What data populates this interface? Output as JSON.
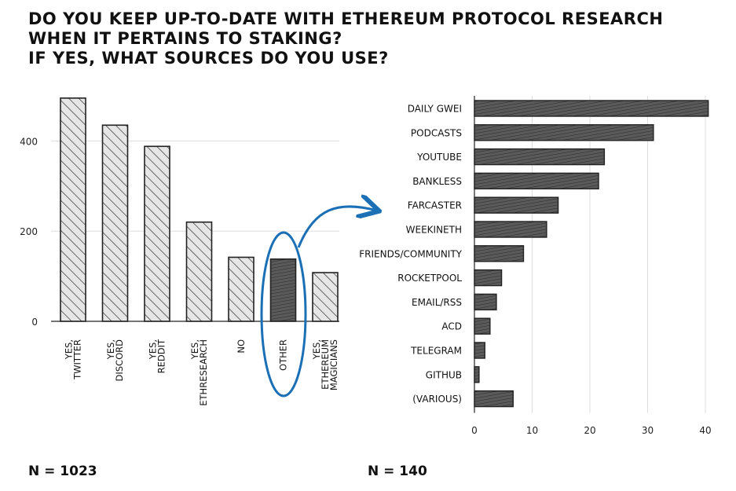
{
  "title_lines": [
    "DO YOU KEEP UP-TO-DATE WITH ETHEREUM PROTOCOL RESEARCH",
    "WHEN IT PERTAINS TO STAKING?",
    "IF YES, WHAT SOURCES DO YOU USE?"
  ],
  "left_n": "N = 1023",
  "right_n": "N = 140",
  "colors": {
    "light_fill": "#e6e6e6",
    "dark_fill": "#555555",
    "stroke": "#222222",
    "arrow": "#1a6fb5",
    "grid": "#dddddd"
  },
  "chart_data": [
    {
      "type": "bar",
      "orientation": "vertical",
      "categories": [
        [
          "YES,",
          "TWITTER"
        ],
        [
          "YES,",
          "DISCORD"
        ],
        [
          "YES,",
          "REDDIT"
        ],
        [
          "YES,",
          "ETHRESEARCH"
        ],
        [
          "NO"
        ],
        [
          "OTHER"
        ],
        [
          "YES,",
          "ETHEREUM",
          "MAGICIANS"
        ]
      ],
      "values": [
        495,
        435,
        388,
        220,
        142,
        138,
        108
      ],
      "highlight_index": 5,
      "yticks": [
        0,
        200,
        400
      ],
      "ylim": [
        0,
        500
      ],
      "grid": true
    },
    {
      "type": "bar",
      "orientation": "horizontal",
      "categories": [
        "DAILY GWEI",
        "PODCASTS",
        "YOUTUBE",
        "BANKLESS",
        "FARCASTER",
        "WEEKINETH",
        "FRIENDS/COMMUNITY",
        "ROCKETPOOL",
        "EMAIL/RSS",
        "ACD",
        "TELEGRAM",
        "GITHUB",
        "(VARIOUS)"
      ],
      "values": [
        40.5,
        31,
        22.5,
        21.5,
        14.5,
        12.5,
        8.5,
        4.7,
        3.8,
        2.7,
        1.8,
        0.8,
        6.7
      ],
      "xticks": [
        0,
        10,
        20,
        30,
        40
      ],
      "xlim": [
        0,
        40
      ],
      "grid": true
    }
  ]
}
